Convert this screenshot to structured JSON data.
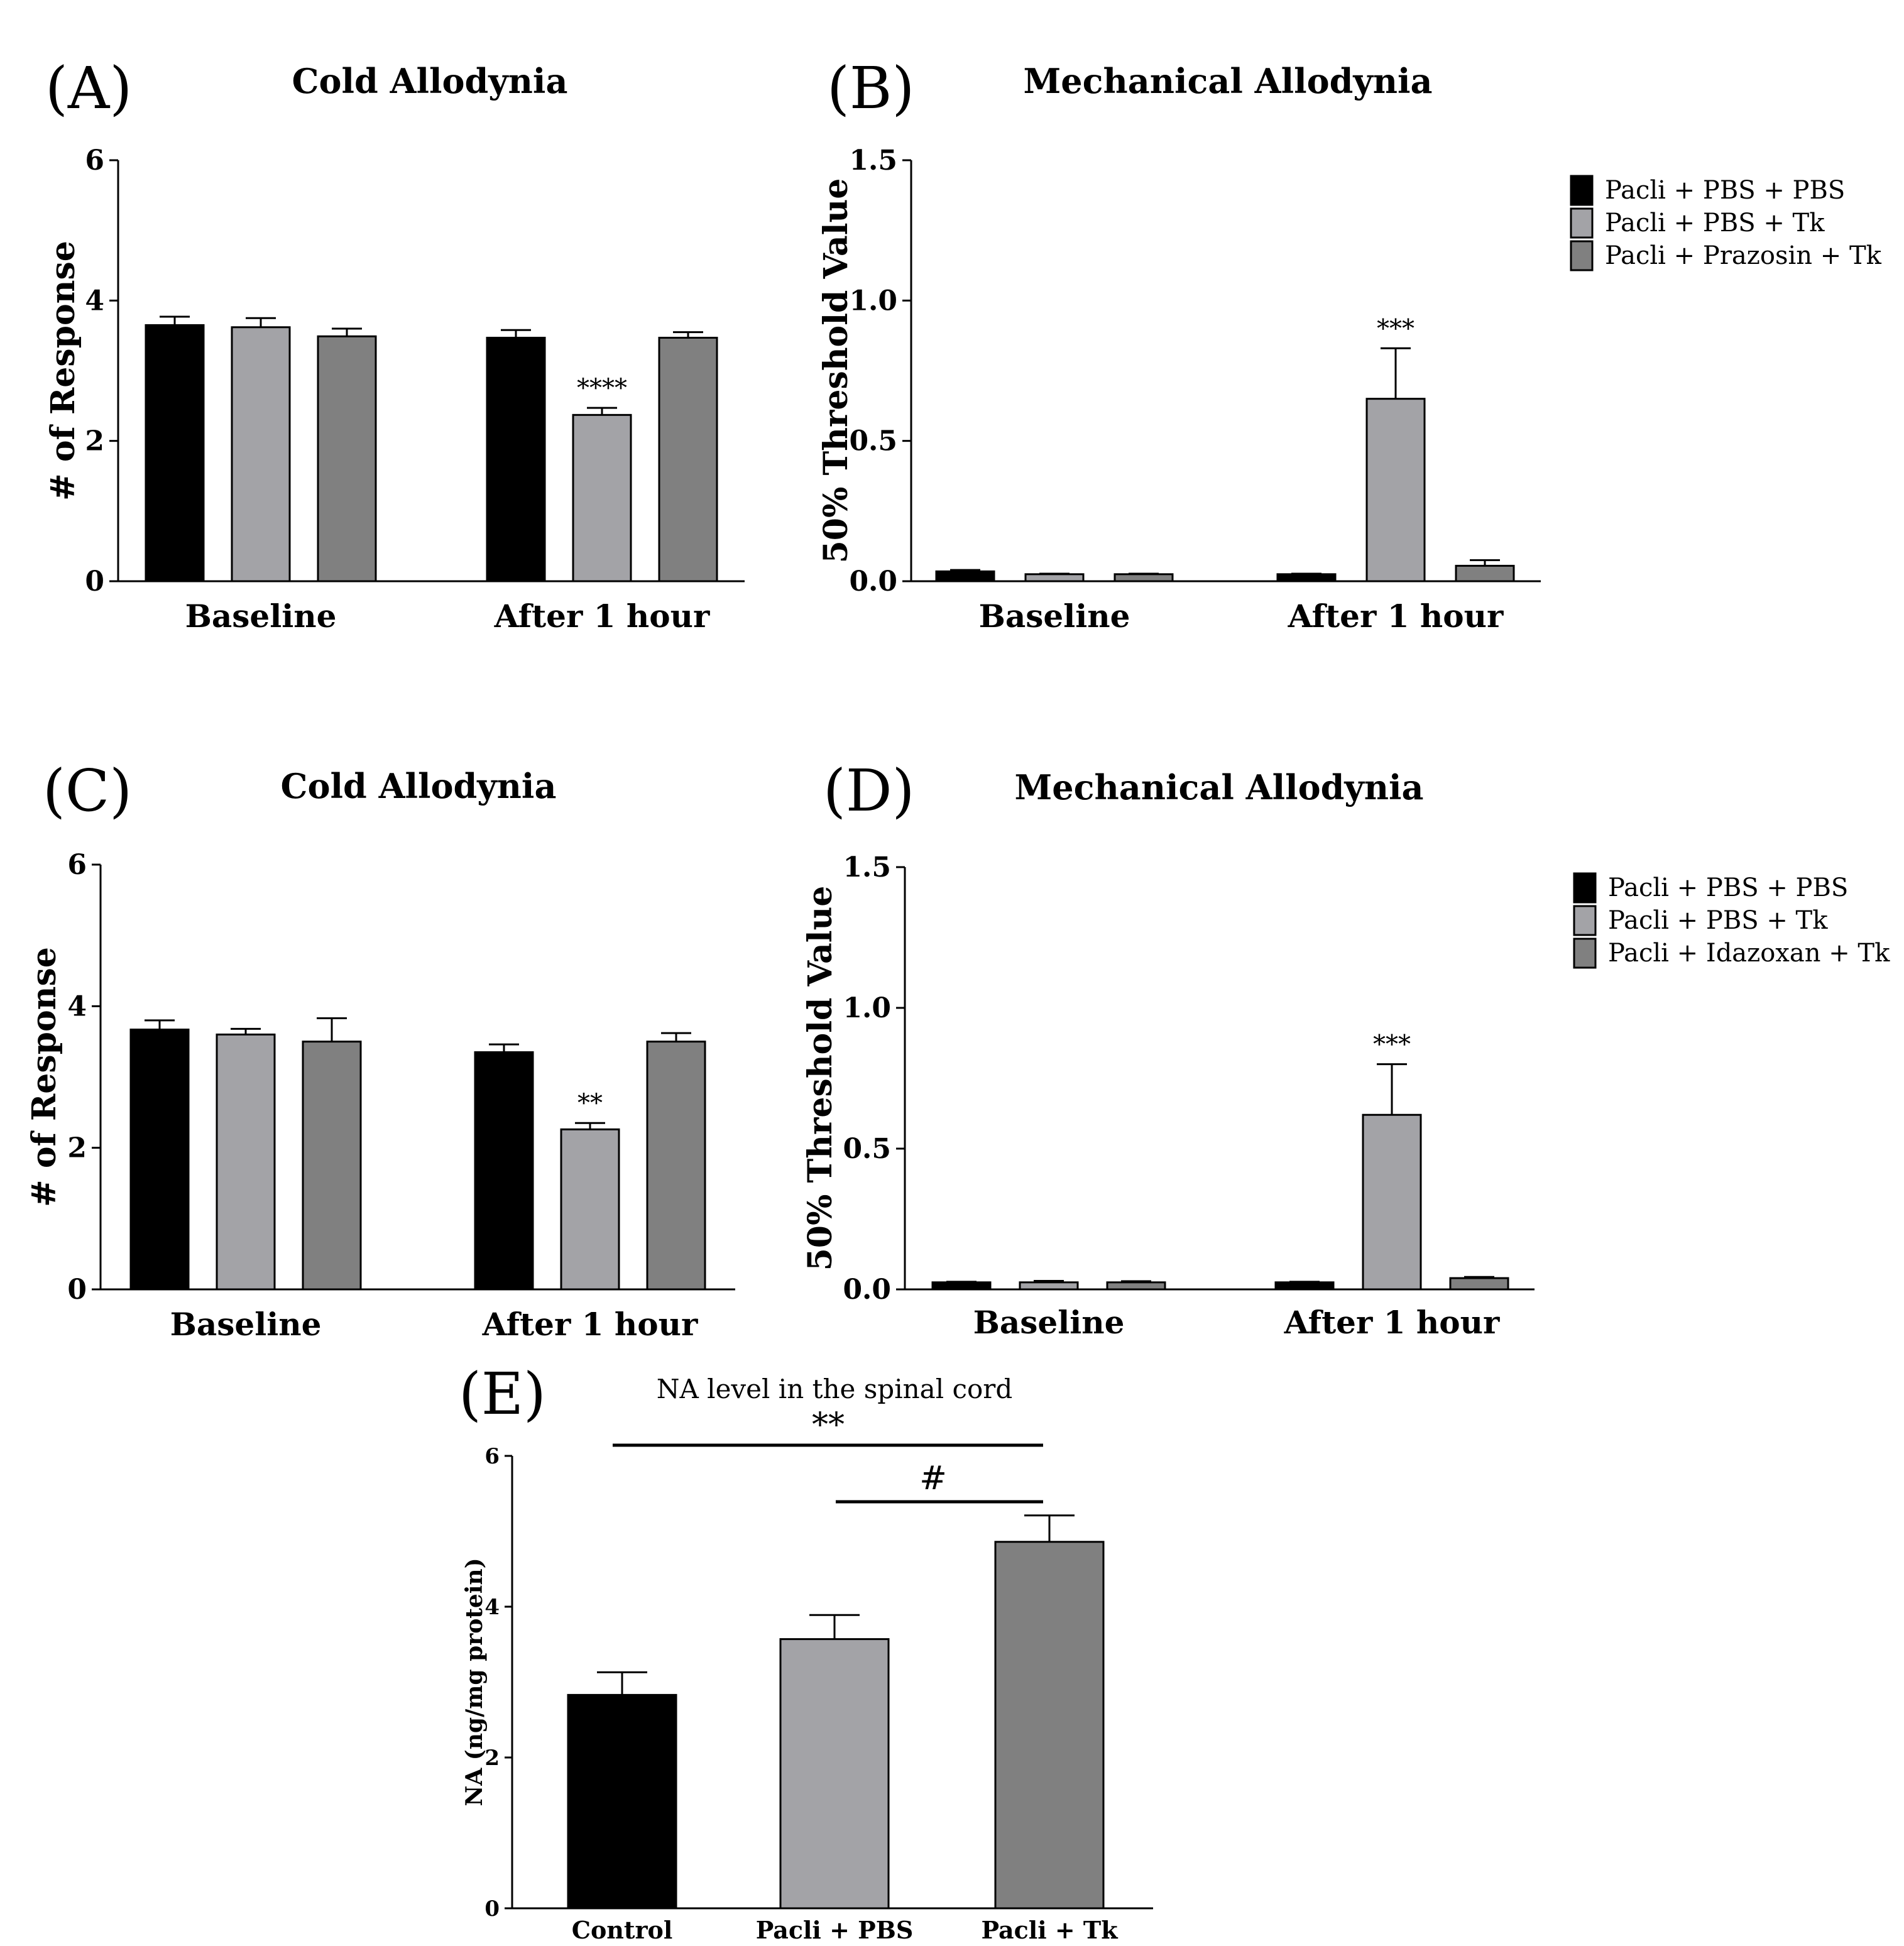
{
  "colors": {
    "black": "#000000",
    "light_gray": "#a3a3a7",
    "dark_gray": "#808080"
  },
  "chart_data": [
    {
      "panel": "(A)",
      "type": "bar",
      "title": "Cold Allodynia",
      "xlabel": "",
      "ylabel": "# of Response",
      "ylim": [
        0,
        6
      ],
      "yticks": [
        "0",
        "2",
        "4",
        "6"
      ],
      "categories": [
        "Baseline",
        "After 1 hour"
      ],
      "series": [
        {
          "name": "Pacli + PBS + PBS",
          "values": [
            3.65,
            3.47
          ],
          "errors": [
            0.12,
            0.11
          ]
        },
        {
          "name": "Pacli + PBS + Tk",
          "values": [
            3.62,
            2.37
          ],
          "errors": [
            0.13,
            0.1
          ]
        },
        {
          "name": "Pacli + Prazosin + Tk",
          "values": [
            3.49,
            3.47
          ],
          "errors": [
            0.11,
            0.08
          ]
        }
      ],
      "annotations": [
        {
          "category": 1,
          "series": 1,
          "text": "****"
        }
      ]
    },
    {
      "panel": "(B)",
      "type": "bar",
      "title": "Mechanical Allodynia",
      "xlabel": "",
      "ylabel": "50% Threshold Value",
      "ylim": [
        0,
        1.5
      ],
      "yticks": [
        "0.0",
        "0.5",
        "1.0",
        "1.5"
      ],
      "categories": [
        "Baseline",
        "After 1 hour"
      ],
      "series": [
        {
          "name": "Pacli + PBS + PBS",
          "values": [
            0.035,
            0.025
          ],
          "errors": [
            0.005,
            0.002
          ]
        },
        {
          "name": "Pacli + PBS + Tk",
          "values": [
            0.025,
            0.65
          ],
          "errors": [
            0.002,
            0.18
          ]
        },
        {
          "name": "Pacli + Prazosin + Tk",
          "values": [
            0.025,
            0.055
          ],
          "errors": [
            0.002,
            0.02
          ]
        }
      ],
      "legend": [
        "Pacli + PBS + PBS",
        "Pacli + PBS + Tk",
        "Pacli + Prazosin + Tk"
      ],
      "annotations": [
        {
          "category": 1,
          "series": 1,
          "text": "***"
        }
      ]
    },
    {
      "panel": "(C)",
      "type": "bar",
      "title": "Cold Allodynia",
      "xlabel": "",
      "ylabel": "# of Response",
      "ylim": [
        0,
        6
      ],
      "yticks": [
        "0",
        "2",
        "4",
        "6"
      ],
      "categories": [
        "Baseline",
        "After 1 hour"
      ],
      "series": [
        {
          "name": "Pacli + PBS + PBS",
          "values": [
            3.67,
            3.35
          ],
          "errors": [
            0.13,
            0.11
          ]
        },
        {
          "name": "Pacli + PBS + Tk",
          "values": [
            3.6,
            2.26
          ],
          "errors": [
            0.08,
            0.09
          ]
        },
        {
          "name": "Pacli + Idazoxan + Tk",
          "values": [
            3.5,
            3.5
          ],
          "errors": [
            0.33,
            0.12
          ]
        }
      ],
      "annotations": [
        {
          "category": 1,
          "series": 1,
          "text": "**"
        }
      ]
    },
    {
      "panel": "(D)",
      "type": "bar",
      "title": "Mechanical Allodynia",
      "xlabel": "",
      "ylabel": "50% Threshold Value",
      "ylim": [
        0,
        1.5
      ],
      "yticks": [
        "0.0",
        "0.5",
        "1.0",
        "1.5"
      ],
      "categories": [
        "Baseline",
        "After 1 hour"
      ],
      "series": [
        {
          "name": "Pacli + PBS + PBS",
          "values": [
            0.025,
            0.025
          ],
          "errors": [
            0.002,
            0.002
          ]
        },
        {
          "name": "Pacli + PBS + Tk",
          "values": [
            0.025,
            0.62
          ],
          "errors": [
            0.005,
            0.18
          ]
        },
        {
          "name": "Pacli + Idazoxan + Tk",
          "values": [
            0.025,
            0.04
          ],
          "errors": [
            0.004,
            0.004
          ]
        }
      ],
      "legend": [
        "Pacli + PBS + PBS",
        "Pacli + PBS + Tk",
        "Pacli + Idazoxan + Tk"
      ],
      "annotations": [
        {
          "category": 1,
          "series": 1,
          "text": "***"
        }
      ]
    },
    {
      "panel": "(E)",
      "type": "bar",
      "title": "NA level in the spinal cord",
      "xlabel": "",
      "ylabel": "NA (ng/mg protein)",
      "ylim": [
        0,
        6
      ],
      "yticks": [
        "0",
        "2",
        "4",
        "6"
      ],
      "categories": [
        "Control",
        "Pacli + PBS",
        "Pacli + Tk"
      ],
      "values": [
        2.83,
        3.57,
        4.86
      ],
      "errors": [
        0.3,
        0.32,
        0.35
      ],
      "bar_colors": [
        "#000000",
        "#a3a3a7",
        "#808080"
      ],
      "brackets": [
        {
          "from": "Control",
          "to": "Pacli + Tk",
          "text": "**"
        },
        {
          "from": "Pacli + PBS",
          "to": "Pacli + Tk",
          "text": "#"
        }
      ]
    }
  ]
}
